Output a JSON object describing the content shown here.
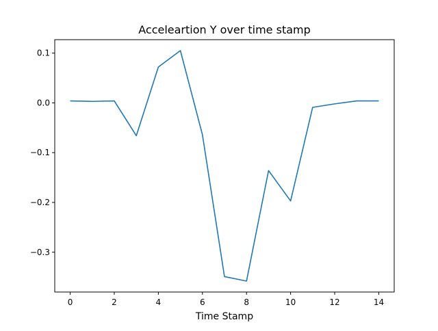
{
  "chart_data": {
    "type": "line",
    "title": "Acceleartion Y over time stamp",
    "xlabel": "Time Stamp",
    "ylabel": "",
    "xlim": [
      -0.7,
      14.7
    ],
    "ylim": [
      -0.38,
      0.127
    ],
    "xticks": [
      0,
      2,
      4,
      6,
      8,
      10,
      12,
      14
    ],
    "xtick_labels": [
      "0",
      "2",
      "4",
      "6",
      "8",
      "10",
      "12",
      "14"
    ],
    "yticks": [
      0.1,
      0.0,
      -0.1,
      -0.2,
      -0.3
    ],
    "ytick_labels": [
      "0.1",
      "0.0",
      "−0.1",
      "−0.2",
      "−0.3"
    ],
    "grid": false,
    "legend": "none",
    "series": [
      {
        "color": "#1f77b4",
        "x": [
          0,
          1,
          2,
          3,
          4,
          5,
          6,
          7,
          8,
          9,
          10,
          11,
          12,
          13,
          14
        ],
        "values": [
          0.004,
          0.003,
          0.004,
          -0.066,
          0.072,
          0.105,
          -0.064,
          -0.349,
          -0.358,
          -0.136,
          -0.197,
          -0.009,
          -0.002,
          0.004,
          0.004
        ]
      }
    ]
  }
}
